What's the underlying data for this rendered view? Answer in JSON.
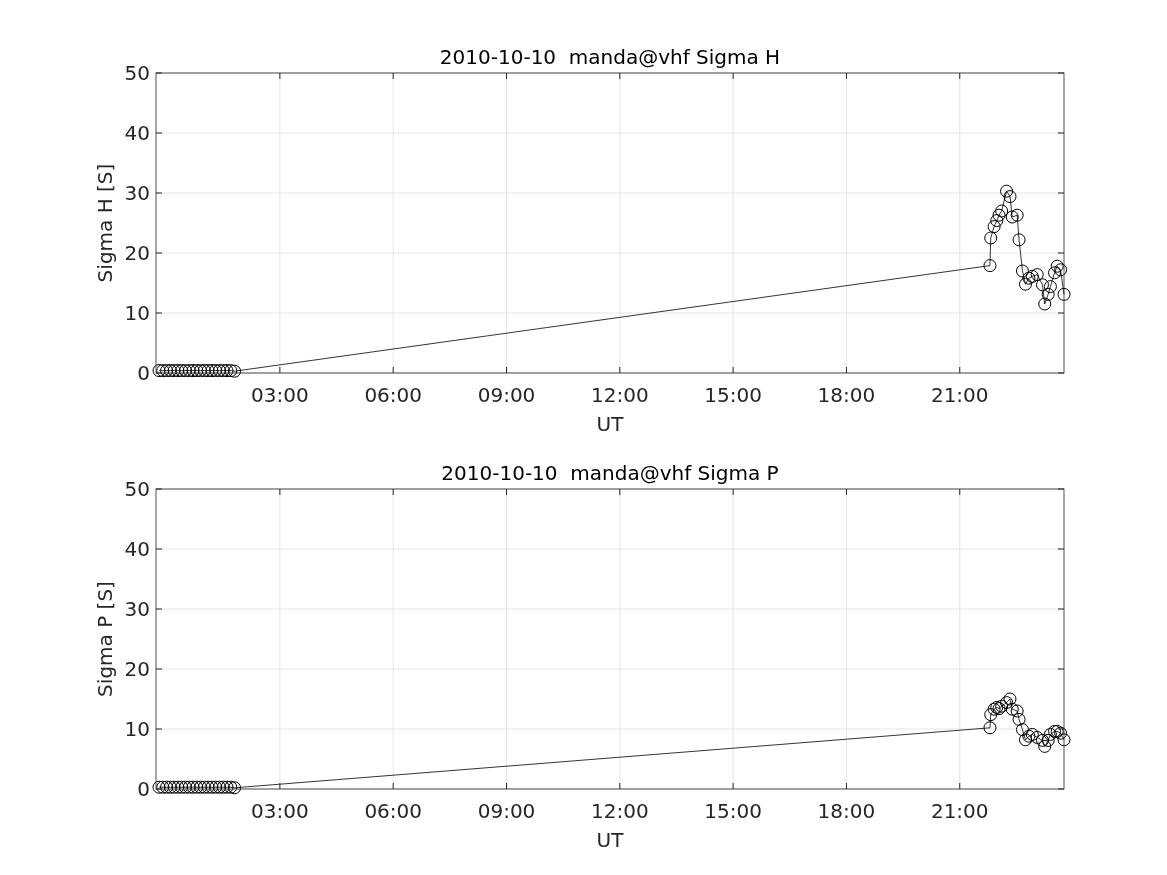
{
  "chart_data": [
    {
      "type": "line",
      "title": "2010-10-10  manda@vhf Sigma H",
      "xlabel": "UT",
      "ylabel": "Sigma H [S]",
      "marker": "circle",
      "grid": true,
      "xlim": [
        -0.28,
        23.76
      ],
      "ylim": [
        0,
        50
      ],
      "xticks": [
        {
          "value": 3,
          "label": "03:00"
        },
        {
          "value": 6,
          "label": "06:00"
        },
        {
          "value": 9,
          "label": "09:00"
        },
        {
          "value": 12,
          "label": "12:00"
        },
        {
          "value": 15,
          "label": "15:00"
        },
        {
          "value": 18,
          "label": "18:00"
        },
        {
          "value": 21,
          "label": "21:00"
        }
      ],
      "yticks": [
        0,
        10,
        20,
        30,
        40,
        50
      ],
      "x": [
        -0.2,
        -0.1,
        0,
        0.1,
        0.2,
        0.3,
        0.4,
        0.5,
        0.6,
        0.7,
        0.8,
        0.9,
        1,
        1.1,
        1.2,
        1.3,
        1.4,
        1.5,
        1.6,
        1.7,
        1.8,
        21.8,
        21.82,
        21.91,
        21.98,
        22.04,
        22.11,
        22.24,
        22.33,
        22.39,
        22.52,
        22.57,
        22.66,
        22.74,
        22.83,
        22.92,
        23.05,
        23.19,
        23.25,
        23.34,
        23.4,
        23.51,
        23.58,
        23.67,
        23.76
      ],
      "series": [
        {
          "color": "#000000",
          "values": [
            0.4,
            0.4,
            0.4,
            0.4,
            0.4,
            0.4,
            0.4,
            0.4,
            0.4,
            0.4,
            0.4,
            0.4,
            0.4,
            0.4,
            0.4,
            0.4,
            0.4,
            0.4,
            0.4,
            0.4,
            0.3,
            17.9,
            22.5,
            24.4,
            25.4,
            26.3,
            27,
            30.3,
            29.4,
            26,
            26.3,
            22.2,
            17,
            14.8,
            15.8,
            16.1,
            16.4,
            14.7,
            11.5,
            13.1,
            14.4,
            16.7,
            17.8,
            17.2,
            13.1
          ]
        }
      ]
    },
    {
      "type": "line",
      "title": "2010-10-10  manda@vhf Sigma P",
      "xlabel": "UT",
      "ylabel": "Sigma P [S]",
      "marker": "circle",
      "grid": true,
      "xlim": [
        -0.28,
        23.76
      ],
      "ylim": [
        0,
        50
      ],
      "xticks": [
        {
          "value": 3,
          "label": "03:00"
        },
        {
          "value": 6,
          "label": "06:00"
        },
        {
          "value": 9,
          "label": "09:00"
        },
        {
          "value": 12,
          "label": "12:00"
        },
        {
          "value": 15,
          "label": "15:00"
        },
        {
          "value": 18,
          "label": "18:00"
        },
        {
          "value": 21,
          "label": "21:00"
        }
      ],
      "yticks": [
        0,
        10,
        20,
        30,
        40,
        50
      ],
      "x": [
        -0.2,
        -0.1,
        0,
        0.1,
        0.2,
        0.3,
        0.4,
        0.5,
        0.6,
        0.7,
        0.8,
        0.9,
        1,
        1.1,
        1.2,
        1.3,
        1.4,
        1.5,
        1.6,
        1.7,
        1.8,
        21.8,
        21.82,
        21.91,
        21.98,
        22.04,
        22.11,
        22.24,
        22.33,
        22.39,
        22.52,
        22.57,
        22.66,
        22.74,
        22.83,
        22.92,
        23.05,
        23.19,
        23.25,
        23.34,
        23.4,
        23.51,
        23.58,
        23.67,
        23.76
      ],
      "series": [
        {
          "color": "#000000",
          "values": [
            0.3,
            0.3,
            0.3,
            0.3,
            0.3,
            0.3,
            0.3,
            0.3,
            0.3,
            0.3,
            0.3,
            0.3,
            0.3,
            0.3,
            0.3,
            0.3,
            0.3,
            0.3,
            0.3,
            0.3,
            0.2,
            10.2,
            12.4,
            13.3,
            13.6,
            13.4,
            13.8,
            14.4,
            15,
            13.3,
            13,
            11.6,
            9.9,
            8.2,
            8.8,
            9.1,
            8.6,
            8.1,
            7.1,
            8.1,
            9.1,
            9.6,
            9.6,
            9.3,
            8.2
          ]
        }
      ]
    }
  ]
}
